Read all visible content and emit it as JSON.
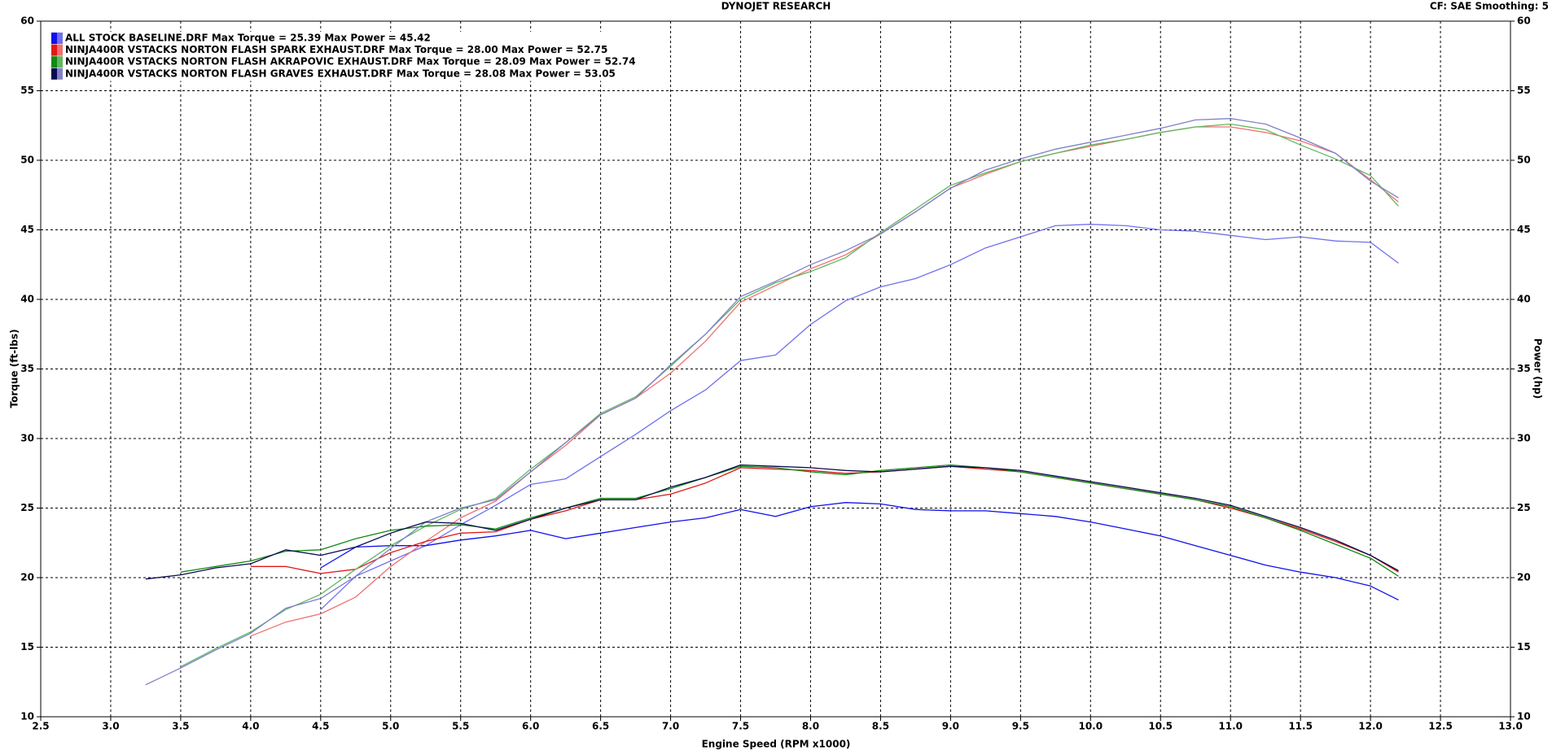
{
  "chart_data": {
    "type": "line",
    "title": "DYNOJET RESEARCH",
    "info": "CF: SAE  Smoothing: 5",
    "x_label": "Engine Speed (RPM x1000)",
    "y_label": "Torque (ft-lbs)",
    "y2_label": "Power (hp)",
    "grid": true,
    "legend": "upper left",
    "xlim": [
      2.5,
      13.0
    ],
    "xticks": [
      2.5,
      {
        "value": 3,
        "label": "3.0"
      },
      3.5,
      {
        "value": 4,
        "label": "4.0"
      },
      4.5,
      {
        "value": 5,
        "label": "5.0"
      },
      5.5,
      {
        "value": 6,
        "label": "6.0"
      },
      6.5,
      {
        "value": 7,
        "label": "7.0"
      },
      7.5,
      {
        "value": 8,
        "label": "8.0"
      },
      8.5,
      {
        "value": 9,
        "label": "9.0"
      },
      9.5,
      {
        "value": 10,
        "label": "10.0"
      },
      10.5,
      {
        "value": 11,
        "label": "11.0"
      },
      11.5,
      {
        "value": 12,
        "label": "12.0"
      },
      12.5,
      {
        "value": 13,
        "label": "13.0"
      }
    ],
    "ylim": [
      10,
      60
    ],
    "yticks": [
      10,
      15,
      20,
      25,
      30,
      35,
      40,
      45,
      50,
      55,
      60
    ],
    "y2lim": [
      10,
      60
    ],
    "y2ticks": [
      10,
      15,
      20,
      25,
      30,
      35,
      40,
      45,
      50,
      55,
      60
    ],
    "x": [
      3.25,
      3.5,
      3.75,
      4.0,
      4.25,
      4.5,
      4.75,
      5.0,
      5.25,
      5.5,
      5.75,
      6.0,
      6.25,
      6.5,
      6.75,
      7.0,
      7.25,
      7.5,
      7.75,
      8.0,
      8.25,
      8.5,
      8.75,
      9.0,
      9.25,
      9.5,
      9.75,
      10.0,
      10.25,
      10.5,
      10.75,
      11.0,
      11.25,
      11.5,
      11.75,
      12.0,
      12.2
    ],
    "series": [
      {
        "name": "ALL STOCK BASELINE.DRF Max Torque = 25.39 Max Power = 45.42",
        "color": "#1010ee",
        "power_color": "#7070f0",
        "torque": [
          null,
          null,
          null,
          null,
          null,
          20.7,
          22.2,
          22.3,
          22.3,
          22.7,
          23.0,
          23.4,
          22.8,
          23.2,
          23.6,
          24.0,
          24.3,
          24.9,
          24.4,
          25.1,
          25.4,
          25.3,
          24.9,
          24.8,
          24.8,
          24.6,
          24.4,
          24.0,
          23.5,
          23.0,
          22.3,
          21.6,
          20.9,
          20.4,
          20.0,
          19.4,
          18.4
        ],
        "power": [
          null,
          null,
          null,
          null,
          null,
          17.7,
          20.1,
          21.2,
          22.3,
          23.8,
          25.2,
          26.7,
          27.1,
          28.7,
          30.3,
          32.0,
          33.5,
          35.6,
          36.0,
          38.2,
          39.9,
          40.9,
          41.5,
          42.5,
          43.7,
          44.5,
          45.3,
          45.4,
          45.3,
          45.0,
          44.9,
          44.6,
          44.3,
          44.5,
          44.2,
          44.1,
          42.6
        ]
      },
      {
        "name": "NINJA400R VSTACKS NORTON FLASH SPARK EXHAUST.DRF Max Torque = 28.00 Max Power = 52.75",
        "color": "#e01818",
        "power_color": "#f07070",
        "torque": [
          null,
          null,
          null,
          20.8,
          20.8,
          20.3,
          20.6,
          21.8,
          22.6,
          23.2,
          23.3,
          24.2,
          24.8,
          25.6,
          25.6,
          26.0,
          26.8,
          27.9,
          27.8,
          27.7,
          27.5,
          27.6,
          27.8,
          28.0,
          27.8,
          27.6,
          27.2,
          26.8,
          26.4,
          26.0,
          25.6,
          25.0,
          24.3,
          23.5,
          22.6,
          21.6,
          20.4
        ],
        "power": [
          null,
          null,
          null,
          15.8,
          16.8,
          17.4,
          18.6,
          20.8,
          22.6,
          24.3,
          25.5,
          27.6,
          29.5,
          31.7,
          32.9,
          34.7,
          37.0,
          39.8,
          41.0,
          42.2,
          43.2,
          44.7,
          46.3,
          48.0,
          49.0,
          49.9,
          50.5,
          51.0,
          51.5,
          52.0,
          52.4,
          52.4,
          52.0,
          51.4,
          50.5,
          48.6,
          47.0
        ]
      },
      {
        "name": "NINJA400R VSTACKS NORTON FLASH AKRAPOVIC EXHAUST.DRF Max Torque = 28.09 Max Power = 52.74",
        "color": "#108a10",
        "power_color": "#60b860",
        "torque": [
          null,
          20.4,
          20.8,
          21.2,
          21.9,
          22.0,
          22.8,
          23.4,
          23.7,
          23.8,
          23.5,
          24.3,
          25.0,
          25.7,
          25.7,
          26.4,
          27.2,
          28.0,
          27.9,
          27.6,
          27.4,
          27.7,
          27.9,
          28.1,
          27.9,
          27.6,
          27.2,
          26.8,
          26.4,
          26.0,
          25.6,
          25.1,
          24.3,
          23.4,
          22.4,
          21.4,
          20.1
        ],
        "power": [
          null,
          13.6,
          14.9,
          16.1,
          17.7,
          18.8,
          20.6,
          22.3,
          23.7,
          24.9,
          25.7,
          27.8,
          29.7,
          31.8,
          33.0,
          35.2,
          37.5,
          40.0,
          41.2,
          42.0,
          43.0,
          44.8,
          46.5,
          48.2,
          49.1,
          49.9,
          50.5,
          51.1,
          51.5,
          52.0,
          52.4,
          52.6,
          52.2,
          51.1,
          50.1,
          48.9,
          46.7
        ]
      },
      {
        "name": "NINJA400R VSTACKS NORTON FLASH GRAVES EXHAUST.DRF Max Torque = 28.08 Max Power = 53.05",
        "color": "#0a0a50",
        "power_color": "#8080c8",
        "torque": [
          19.9,
          20.2,
          20.7,
          21.0,
          22.0,
          21.6,
          22.2,
          23.2,
          24.0,
          23.9,
          23.4,
          24.2,
          25.0,
          25.6,
          25.6,
          26.5,
          27.2,
          28.1,
          28.0,
          27.9,
          27.7,
          27.6,
          27.8,
          28.0,
          27.9,
          27.7,
          27.3,
          26.9,
          26.5,
          26.1,
          25.7,
          25.2,
          24.4,
          23.6,
          22.7,
          21.6,
          20.5
        ],
        "power": [
          12.3,
          13.5,
          14.8,
          16.0,
          17.8,
          18.5,
          20.1,
          22.1,
          24.0,
          25.0,
          25.6,
          27.6,
          29.7,
          31.7,
          32.9,
          35.3,
          37.5,
          40.2,
          41.3,
          42.5,
          43.5,
          44.7,
          46.3,
          48.0,
          49.3,
          50.1,
          50.8,
          51.3,
          51.8,
          52.3,
          52.9,
          53.0,
          52.6,
          51.6,
          50.5,
          48.5,
          47.3
        ]
      }
    ]
  }
}
